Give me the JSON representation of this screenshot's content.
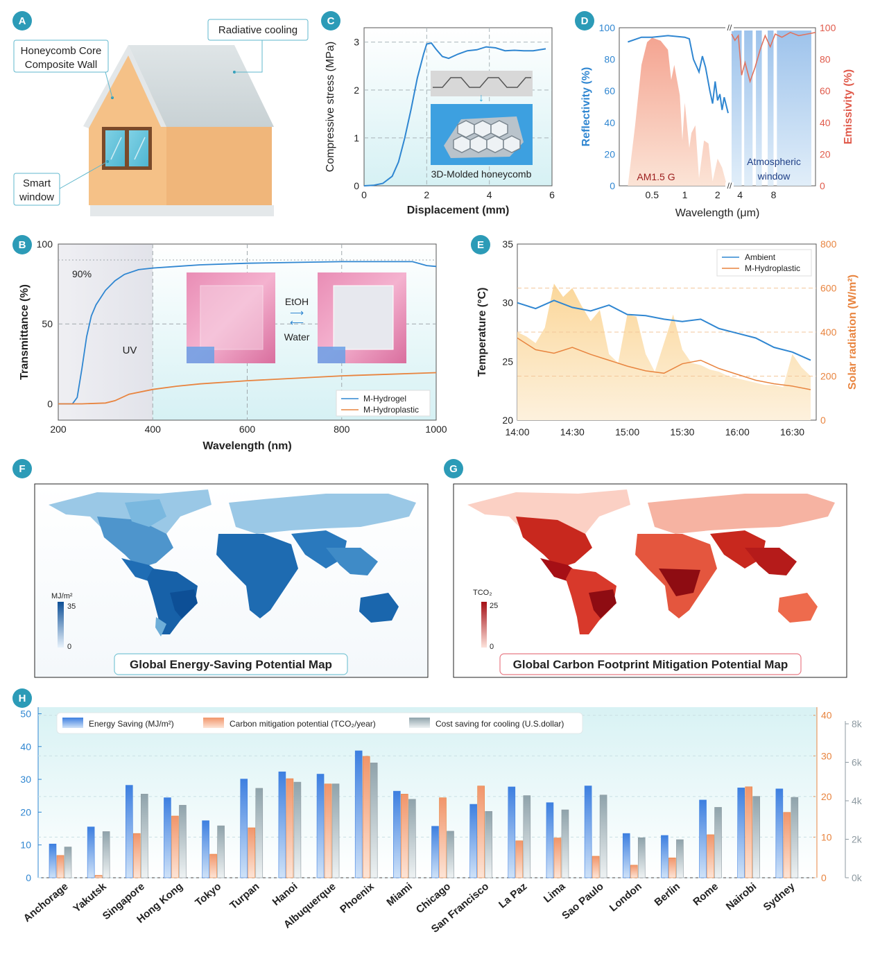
{
  "colors": {
    "blue": "#2f86d1",
    "orange": "#e8843f",
    "red": "#e05a4b",
    "teal": "#2c9bb7",
    "gray": "#8e9aa1",
    "panel_bg": "#e3f5f8",
    "house_wall": "#f5c187",
    "roof": "#d5dde0"
  },
  "panelA": {
    "letter": "A",
    "callout_wall": [
      "Honeycomb Core",
      "Composite Wall"
    ],
    "callout_roof": "Radiative cooling",
    "callout_window": [
      "Smart",
      "window"
    ]
  },
  "panelC": {
    "letter": "C",
    "inset_label": "3D-Molded honeycomb",
    "arrow_glyph": "↓"
  },
  "panelD": {
    "letter": "D",
    "am_label": "AM1.5 G",
    "window_label": [
      "Atmospheric",
      "window"
    ],
    "break_mark": "//"
  },
  "panelB": {
    "letter": "B",
    "label_90": "90%",
    "label_uv": "UV",
    "etoh": "EtOH",
    "water": "Water",
    "arrow_right": "⟶",
    "arrow_left": "⟵"
  },
  "panelE": {
    "letter": "E"
  },
  "panelF": {
    "letter": "F",
    "title": "Global Energy-Saving Potential Map",
    "unit": "MJ/m²",
    "max": "35",
    "min": "0"
  },
  "panelG": {
    "letter": "G",
    "title": "Global Carbon Footprint Mitigation Potential Map",
    "unit": "TCO₂",
    "max": "25",
    "min": "0"
  },
  "panelH": {
    "letter": "H"
  },
  "chart_data": [
    {
      "id": "C",
      "type": "line",
      "xlabel": "Displacement (mm)",
      "ylabel": "Compressive stress  (MPa)",
      "xlim": [
        0,
        6
      ],
      "ylim": [
        0,
        3.3
      ],
      "xticks": [
        0,
        2,
        4,
        6
      ],
      "yticks": [
        0,
        1,
        2,
        3
      ],
      "series": [
        {
          "name": "honeycomb",
          "x": [
            0,
            0.3,
            0.6,
            0.9,
            1.1,
            1.3,
            1.5,
            1.7,
            1.9,
            2.0,
            2.15,
            2.3,
            2.5,
            2.7,
            3.0,
            3.3,
            3.6,
            3.9,
            4.2,
            4.5,
            4.8,
            5.1,
            5.4,
            5.8
          ],
          "y": [
            0,
            0.01,
            0.05,
            0.2,
            0.5,
            1.0,
            1.6,
            2.25,
            2.75,
            2.96,
            2.98,
            2.85,
            2.7,
            2.66,
            2.75,
            2.82,
            2.84,
            2.9,
            2.88,
            2.82,
            2.83,
            2.82,
            2.82,
            2.86
          ]
        }
      ]
    },
    {
      "id": "D",
      "type": "line",
      "xlabel": "Wavelength (μm)",
      "ylabel": "Reflectivity (%)",
      "ylabel_right": "Emissivity (%)",
      "ylim": [
        0,
        100
      ],
      "yticks": [
        0,
        20,
        40,
        60,
        80,
        100
      ],
      "xticks_left": [
        "0.5",
        "1",
        "2"
      ],
      "xticks_right": [
        "4",
        "8"
      ],
      "series": [
        {
          "name": "Reflectivity",
          "x": [
            0.3,
            0.4,
            0.5,
            0.7,
            1.0,
            1.1,
            1.2,
            1.35,
            1.45,
            1.55,
            1.7,
            1.8,
            1.9,
            2.0,
            2.1,
            2.2,
            2.3,
            2.5
          ],
          "y": [
            91,
            94,
            94,
            95,
            94,
            93,
            80,
            72,
            82,
            75,
            60,
            52,
            66,
            54,
            58,
            48,
            56,
            46
          ]
        },
        {
          "name": "Emissivity",
          "x": [
            3,
            3.4,
            3.8,
            4.2,
            4.6,
            5.2,
            5.8,
            6.4,
            7.0,
            7.6,
            8.2,
            9.0,
            10,
            11,
            12,
            13
          ],
          "y": [
            96,
            92,
            95,
            70,
            78,
            66,
            75,
            86,
            95,
            88,
            96,
            94,
            97,
            95,
            96,
            97
          ]
        }
      ]
    },
    {
      "id": "B",
      "type": "line",
      "xlabel": "Wavelength (nm)",
      "ylabel": "Transmittance (%)",
      "xlim": [
        200,
        1000
      ],
      "ylim": [
        -5,
        100
      ],
      "xticks": [
        200,
        400,
        600,
        800,
        1000
      ],
      "yticks": [
        0,
        50,
        100
      ],
      "series": [
        {
          "name": "M-Hydrogel",
          "x": [
            200,
            230,
            240,
            250,
            260,
            270,
            280,
            300,
            320,
            340,
            370,
            400,
            450,
            500,
            600,
            700,
            800,
            900,
            950,
            980,
            1000
          ],
          "y": [
            0,
            0,
            4,
            22,
            42,
            55,
            62,
            71,
            77,
            81,
            84,
            85,
            86,
            87,
            88,
            88.5,
            89,
            89,
            89,
            86.5,
            86
          ]
        },
        {
          "name": "M-Hydroplastic",
          "x": [
            200,
            250,
            300,
            320,
            350,
            400,
            450,
            500,
            600,
            700,
            800,
            900,
            1000
          ],
          "y": [
            0,
            0,
            0.5,
            2,
            6,
            9,
            11,
            12.5,
            14.5,
            16,
            17.5,
            18.5,
            19.5
          ]
        }
      ]
    },
    {
      "id": "E",
      "type": "line",
      "xlabel": "",
      "ylabel": "Temperature (°C)",
      "ylabel_right": "Solar radiation (W/m²)",
      "ylim": [
        20,
        35
      ],
      "ylim_right": [
        0,
        800
      ],
      "yticks": [
        20,
        25,
        30,
        35
      ],
      "yticks_right": [
        0,
        200,
        400,
        600,
        800
      ],
      "xticks": [
        "14:00",
        "14:30",
        "15:00",
        "15:30",
        "16:00",
        "16:30"
      ],
      "series": [
        {
          "name": "Ambient",
          "x_min": [
            0,
            10,
            20,
            30,
            40,
            50,
            60,
            70,
            80,
            90,
            100,
            110,
            120,
            130,
            140,
            150,
            160
          ],
          "y": [
            30,
            29.5,
            30.2,
            29.6,
            29.3,
            29.8,
            29,
            28.9,
            28.6,
            28.4,
            28.6,
            27.8,
            27.4,
            27,
            26.2,
            25.8,
            25.1
          ]
        },
        {
          "name": "M-Hydroplastic",
          "x_min": [
            0,
            10,
            20,
            30,
            40,
            50,
            60,
            70,
            80,
            90,
            100,
            110,
            120,
            130,
            140,
            150,
            160
          ],
          "y": [
            27,
            26,
            25.7,
            26.2,
            25.6,
            25.1,
            24.6,
            24.2,
            24,
            24.8,
            25.1,
            24.4,
            23.9,
            23.4,
            23.1,
            22.9,
            22.6
          ]
        },
        {
          "name": "Solar radiation",
          "x_min": [
            0,
            5,
            10,
            15,
            20,
            25,
            30,
            35,
            40,
            45,
            50,
            55,
            60,
            65,
            70,
            75,
            80,
            85,
            90,
            95,
            100,
            105,
            110,
            115,
            120,
            125,
            130,
            135,
            140,
            145,
            150,
            155,
            160
          ],
          "y": [
            400,
            380,
            350,
            420,
            620,
            560,
            600,
            520,
            450,
            500,
            300,
            260,
            480,
            470,
            300,
            220,
            350,
            480,
            320,
            260,
            250,
            230,
            220,
            200,
            190,
            180,
            170,
            160,
            160,
            150,
            300,
            240,
            200
          ]
        }
      ],
      "legend": [
        "Ambient",
        "M-Hydroplastic"
      ]
    },
    {
      "id": "H",
      "type": "bar",
      "categories": [
        "Anchorage",
        "Yakutsk",
        "Singapore",
        "Hong Kong",
        "Tokyo",
        "Turpan",
        "Hanoi",
        "Albuquerque",
        "Phoenix",
        "Miami",
        "Chicago",
        "San Francisco",
        "La Paz",
        "Lima",
        "Sao Paulo",
        "London",
        "Berlin",
        "Rome",
        "Nairobi",
        "Sydney"
      ],
      "ylim": [
        0,
        52
      ],
      "yticks": [
        0,
        10,
        20,
        30,
        40,
        50
      ],
      "ylim_right": [
        0,
        42
      ],
      "yticks_right": [
        0,
        10,
        20,
        30,
        40
      ],
      "ylim_right2": [
        0,
        8
      ],
      "yticks_right2": [
        "0k",
        "2k",
        "4k",
        "6k",
        "8k"
      ],
      "series": [
        {
          "name": "Energy Saving (MJ/m²)",
          "axis": "left",
          "values": [
            10.3,
            15.5,
            28.2,
            24.4,
            17.4,
            30.1,
            32.3,
            31.6,
            38.7,
            26.4,
            15.7,
            22.4,
            27.7,
            22.9,
            28,
            13.5,
            12.9,
            23.7,
            27.4,
            27.1
          ]
        },
        {
          "name": "Carbon mitigation potential (TCO₂/year)",
          "axis": "right",
          "values": [
            5.5,
            0.6,
            10.9,
            15.2,
            5.8,
            12.3,
            24.4,
            23.1,
            29.9,
            20.6,
            19.7,
            22.6,
            9.1,
            9.8,
            5.3,
            3.1,
            4.9,
            10.6,
            22.4,
            16.1
          ]
        },
        {
          "name": "Cost saving for cooling (U.S.dollar)",
          "axis": "right2",
          "values": [
            1.6,
            2.4,
            4.35,
            3.77,
            2.7,
            4.65,
            4.97,
            4.88,
            5.97,
            4.08,
            2.42,
            3.45,
            4.27,
            3.53,
            4.3,
            2.08,
            1.98,
            3.66,
            4.23,
            4.18
          ]
        }
      ]
    },
    {
      "id": "F",
      "type": "map",
      "title": "Global Energy-Saving Potential Map",
      "colorbar": {
        "label": "MJ/m²",
        "min": 0,
        "max": 35
      }
    },
    {
      "id": "G",
      "type": "map",
      "title": "Global Carbon Footprint Mitigation Potential Map",
      "colorbar": {
        "label": "TCO₂",
        "min": 0,
        "max": 25
      }
    }
  ]
}
